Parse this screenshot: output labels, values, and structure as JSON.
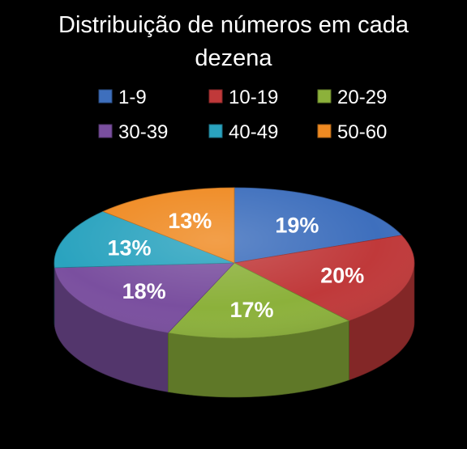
{
  "chart_data": {
    "type": "pie",
    "title_lines": [
      "Distribuição de números em cada",
      "dezena"
    ],
    "categories": [
      "1-9",
      "10-19",
      "20-29",
      "30-39",
      "40-49",
      "50-60"
    ],
    "values": [
      19,
      20,
      17,
      18,
      13,
      13
    ],
    "data_labels": [
      "19%",
      "20%",
      "17%",
      "18%",
      "13%",
      "13%"
    ],
    "colors": [
      "#3e6fbd",
      "#c0393a",
      "#8cb13b",
      "#7a4f9f",
      "#2aa3bf",
      "#ef8a22"
    ],
    "legend_position": "top",
    "style": "3d-pie"
  }
}
